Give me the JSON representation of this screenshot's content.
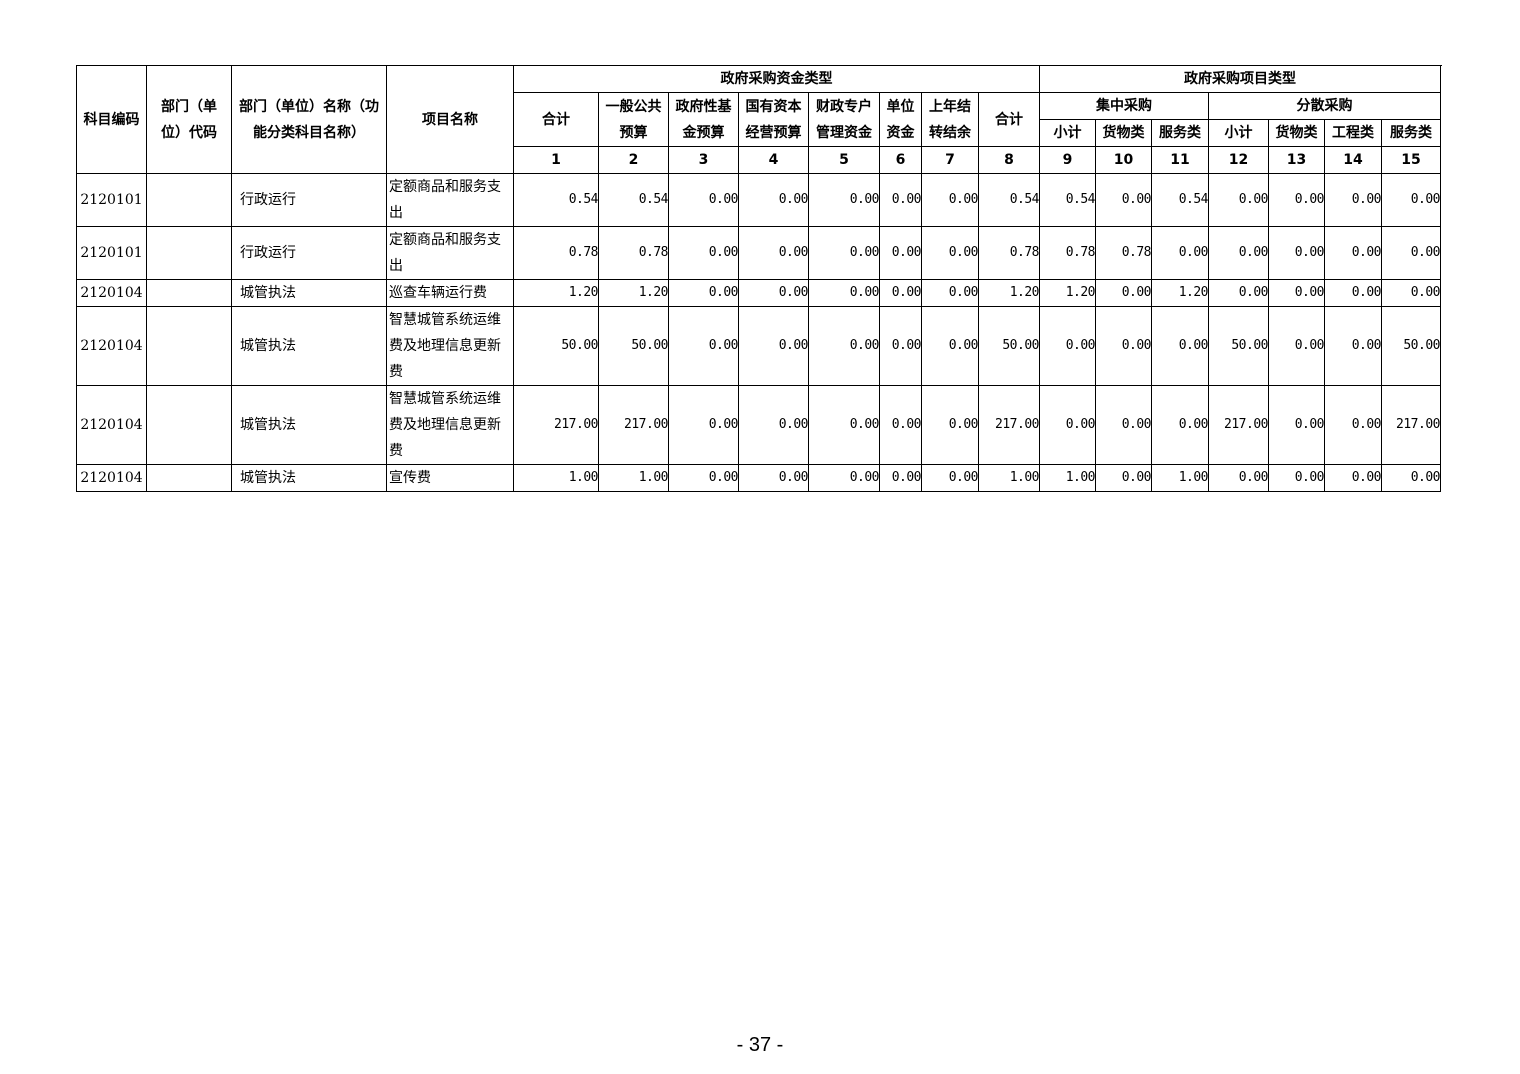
{
  "header": {
    "subject_code": "科目编码",
    "dept_code": "部门（单位）代码",
    "dept_name": "部门（单位）名称（功能分类科目名称）",
    "project_name": "项目名称",
    "fund_type_group": "政府采购资金类型",
    "project_type_group": "政府采购项目类型",
    "fund_cols": [
      "合计",
      "一般公共预算",
      "政府性基金预算",
      "国有资本经营预算",
      "财政专户管理资金",
      "单位资金",
      "上年结转结余"
    ],
    "total": "合计",
    "centralized": "集中采购",
    "decentralized": "分散采购",
    "centralized_cols": [
      "小计",
      "货物类",
      "服务类"
    ],
    "decentralized_cols": [
      "小计",
      "货物类",
      "工程类",
      "服务类"
    ],
    "col_numbers": [
      "1",
      "2",
      "3",
      "4",
      "5",
      "6",
      "7",
      "8",
      "9",
      "10",
      "11",
      "12",
      "13",
      "14",
      "15"
    ]
  },
  "rows": [
    {
      "code": "2120101",
      "dept_code": "",
      "name": "行政运行",
      "project": "定额商品和服务支出",
      "values": [
        "0.54",
        "0.54",
        "0.00",
        "0.00",
        "0.00",
        "0.00",
        "0.00",
        "0.54",
        "0.54",
        "0.00",
        "0.54",
        "0.00",
        "0.00",
        "0.00",
        "0.00"
      ]
    },
    {
      "code": "2120101",
      "dept_code": "",
      "name": "行政运行",
      "project": "定额商品和服务支出",
      "values": [
        "0.78",
        "0.78",
        "0.00",
        "0.00",
        "0.00",
        "0.00",
        "0.00",
        "0.78",
        "0.78",
        "0.78",
        "0.00",
        "0.00",
        "0.00",
        "0.00",
        "0.00"
      ]
    },
    {
      "code": "2120104",
      "dept_code": "",
      "name": "城管执法",
      "project": "巡查车辆运行费",
      "values": [
        "1.20",
        "1.20",
        "0.00",
        "0.00",
        "0.00",
        "0.00",
        "0.00",
        "1.20",
        "1.20",
        "0.00",
        "1.20",
        "0.00",
        "0.00",
        "0.00",
        "0.00"
      ]
    },
    {
      "code": "2120104",
      "dept_code": "",
      "name": "城管执法",
      "project": "智慧城管系统运维费及地理信息更新费",
      "values": [
        "50.00",
        "50.00",
        "0.00",
        "0.00",
        "0.00",
        "0.00",
        "0.00",
        "50.00",
        "0.00",
        "0.00",
        "0.00",
        "50.00",
        "0.00",
        "0.00",
        "50.00"
      ]
    },
    {
      "code": "2120104",
      "dept_code": "",
      "name": "城管执法",
      "project": "智慧城管系统运维费及地理信息更新费",
      "values": [
        "217.00",
        "217.00",
        "0.00",
        "0.00",
        "0.00",
        "0.00",
        "0.00",
        "217.00",
        "0.00",
        "0.00",
        "0.00",
        "217.00",
        "0.00",
        "0.00",
        "217.00"
      ]
    },
    {
      "code": "2120104",
      "dept_code": "",
      "name": "城管执法",
      "project": "宣传费",
      "values": [
        "1.00",
        "1.00",
        "0.00",
        "0.00",
        "0.00",
        "0.00",
        "0.00",
        "1.00",
        "1.00",
        "0.00",
        "1.00",
        "0.00",
        "0.00",
        "0.00",
        "0.00"
      ]
    }
  ],
  "page_number": "- 37 -"
}
